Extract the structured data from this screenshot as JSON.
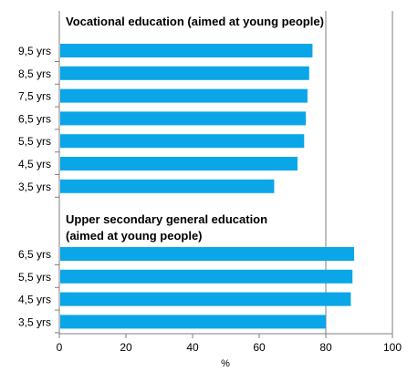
{
  "chart_data": {
    "type": "bar",
    "orientation": "horizontal",
    "xlabel": "%",
    "xlim": [
      0,
      100
    ],
    "xticks": [
      0,
      20,
      40,
      60,
      80,
      100
    ],
    "grid": "vertical gridline at 80",
    "bar_color": "#0aa6e8",
    "groups": [
      {
        "title_lines": [
          "Vocational education (aimed at young people)"
        ],
        "categories": [
          "9,5 yrs",
          "8,5 yrs",
          "7,5 yrs",
          "6,5 yrs",
          "5,5 yrs",
          "4,5 yrs",
          "3,5 yrs"
        ],
        "values": [
          76,
          75,
          74.5,
          74,
          73.5,
          71.5,
          64.5
        ]
      },
      {
        "title_lines": [
          "Upper secondary general education",
          "(aimed at young people)"
        ],
        "categories": [
          "6,5 yrs",
          "5,5 yrs",
          "4,5 yrs",
          "3,5 yrs"
        ],
        "values": [
          88.5,
          88,
          87.5,
          80
        ]
      }
    ]
  }
}
